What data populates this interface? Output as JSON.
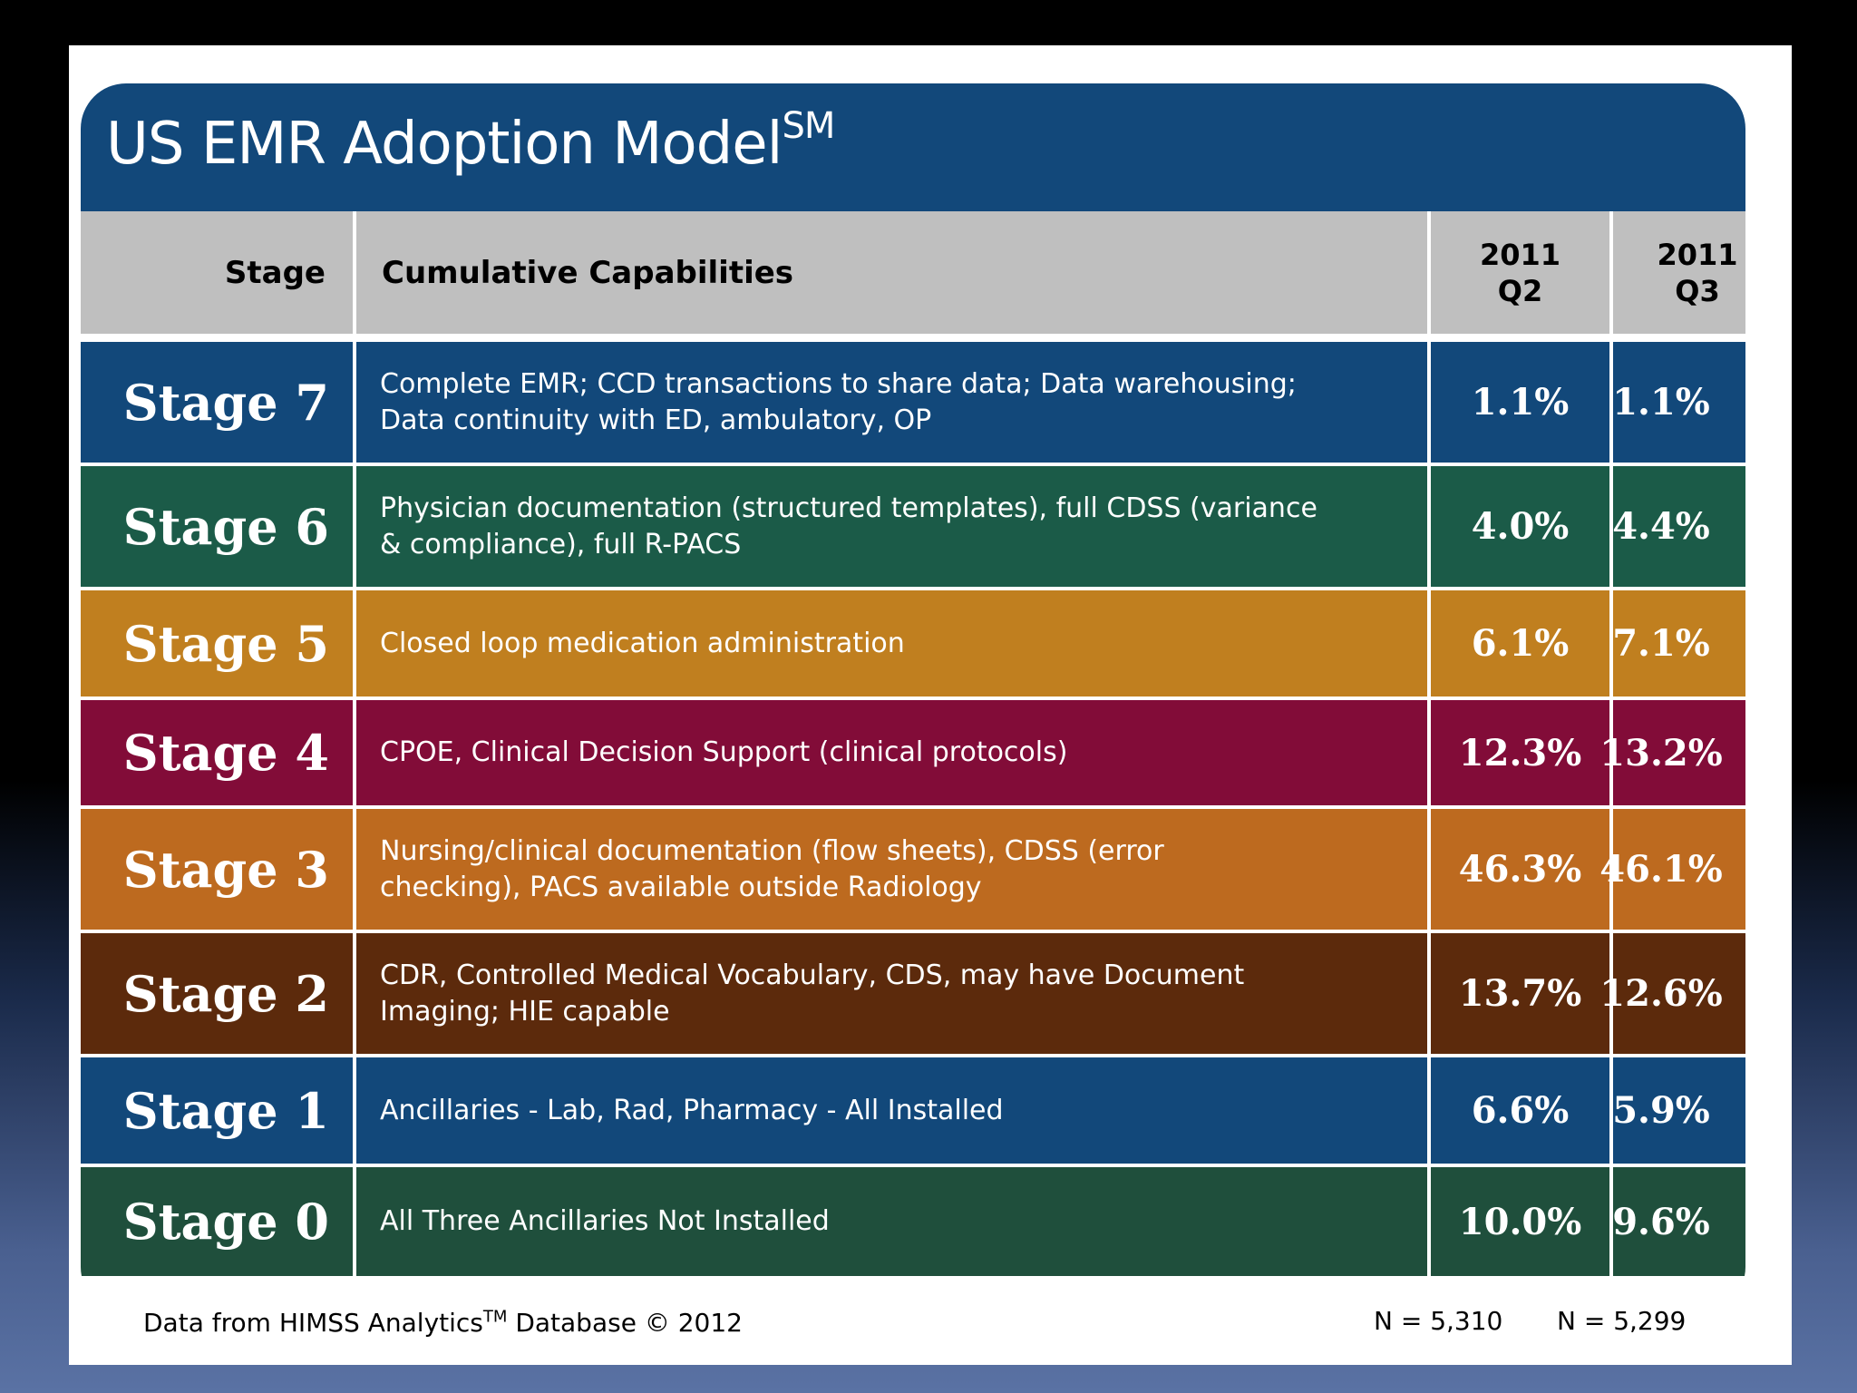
{
  "title": {
    "main": "US EMR Adoption Model",
    "superscript": "SM"
  },
  "chart_data": {
    "type": "table",
    "title": "US EMR Adoption Model",
    "columns": [
      "Stage",
      "Cumulative Capabilities",
      "2011 Q2",
      "2011 Q3"
    ],
    "column_headers": {
      "stage": "Stage",
      "capabilities": "Cumulative Capabilities",
      "q2_line1": "2011",
      "q2_line2": "Q2",
      "q3_line1": "2011",
      "q3_line2": "Q3"
    },
    "rows": [
      {
        "stage": "Stage 7",
        "capabilities": [
          "Complete EMR; CCD transactions to share data; Data warehousing;",
          "Data continuity with ED, ambulatory, OP"
        ],
        "q2": "1.1%",
        "q3": "1.1%",
        "color": "#12487a"
      },
      {
        "stage": "Stage 6",
        "capabilities": [
          "Physician documentation (structured templates), full CDSS (variance",
          "& compliance), full R-PACS"
        ],
        "q2": "4.0%",
        "q3": "4.4%",
        "color": "#1b5b48"
      },
      {
        "stage": "Stage 5",
        "capabilities": [
          "Closed loop medication administration"
        ],
        "q2": "6.1%",
        "q3": "7.1%",
        "color": "#c07f1f"
      },
      {
        "stage": "Stage 4",
        "capabilities": [
          "CPOE, Clinical Decision Support (clinical protocols)"
        ],
        "q2": "12.3%",
        "q3": "13.2%",
        "color": "#820c38"
      },
      {
        "stage": "Stage 3",
        "capabilities": [
          "Nursing/clinical documentation (flow sheets), CDSS (error",
          "checking), PACS available outside Radiology"
        ],
        "q2": "46.3%",
        "q3": "46.1%",
        "color": "#bd6a1f"
      },
      {
        "stage": "Stage 2",
        "capabilities": [
          "CDR, Controlled Medical Vocabulary, CDS, may have Document",
          "Imaging; HIE capable"
        ],
        "q2": "13.7%",
        "q3": "12.6%",
        "color": "#5c2a0c"
      },
      {
        "stage": "Stage 1",
        "capabilities": [
          "Ancillaries - Lab, Rad, Pharmacy - All Installed"
        ],
        "q2": "6.6%",
        "q3": "5.9%",
        "color": "#12487a"
      },
      {
        "stage": "Stage 0",
        "capabilities": [
          "All Three Ancillaries Not Installed"
        ],
        "q2": "10.0%",
        "q3": "9.6%",
        "color": "#1f4f3c"
      }
    ]
  },
  "footer": {
    "source_before": "Data from HIMSS Analytics",
    "source_tm": "TM",
    "source_after": " Database © 2012",
    "n_q2": "N = 5,310",
    "n_q3": "N = 5,299"
  }
}
